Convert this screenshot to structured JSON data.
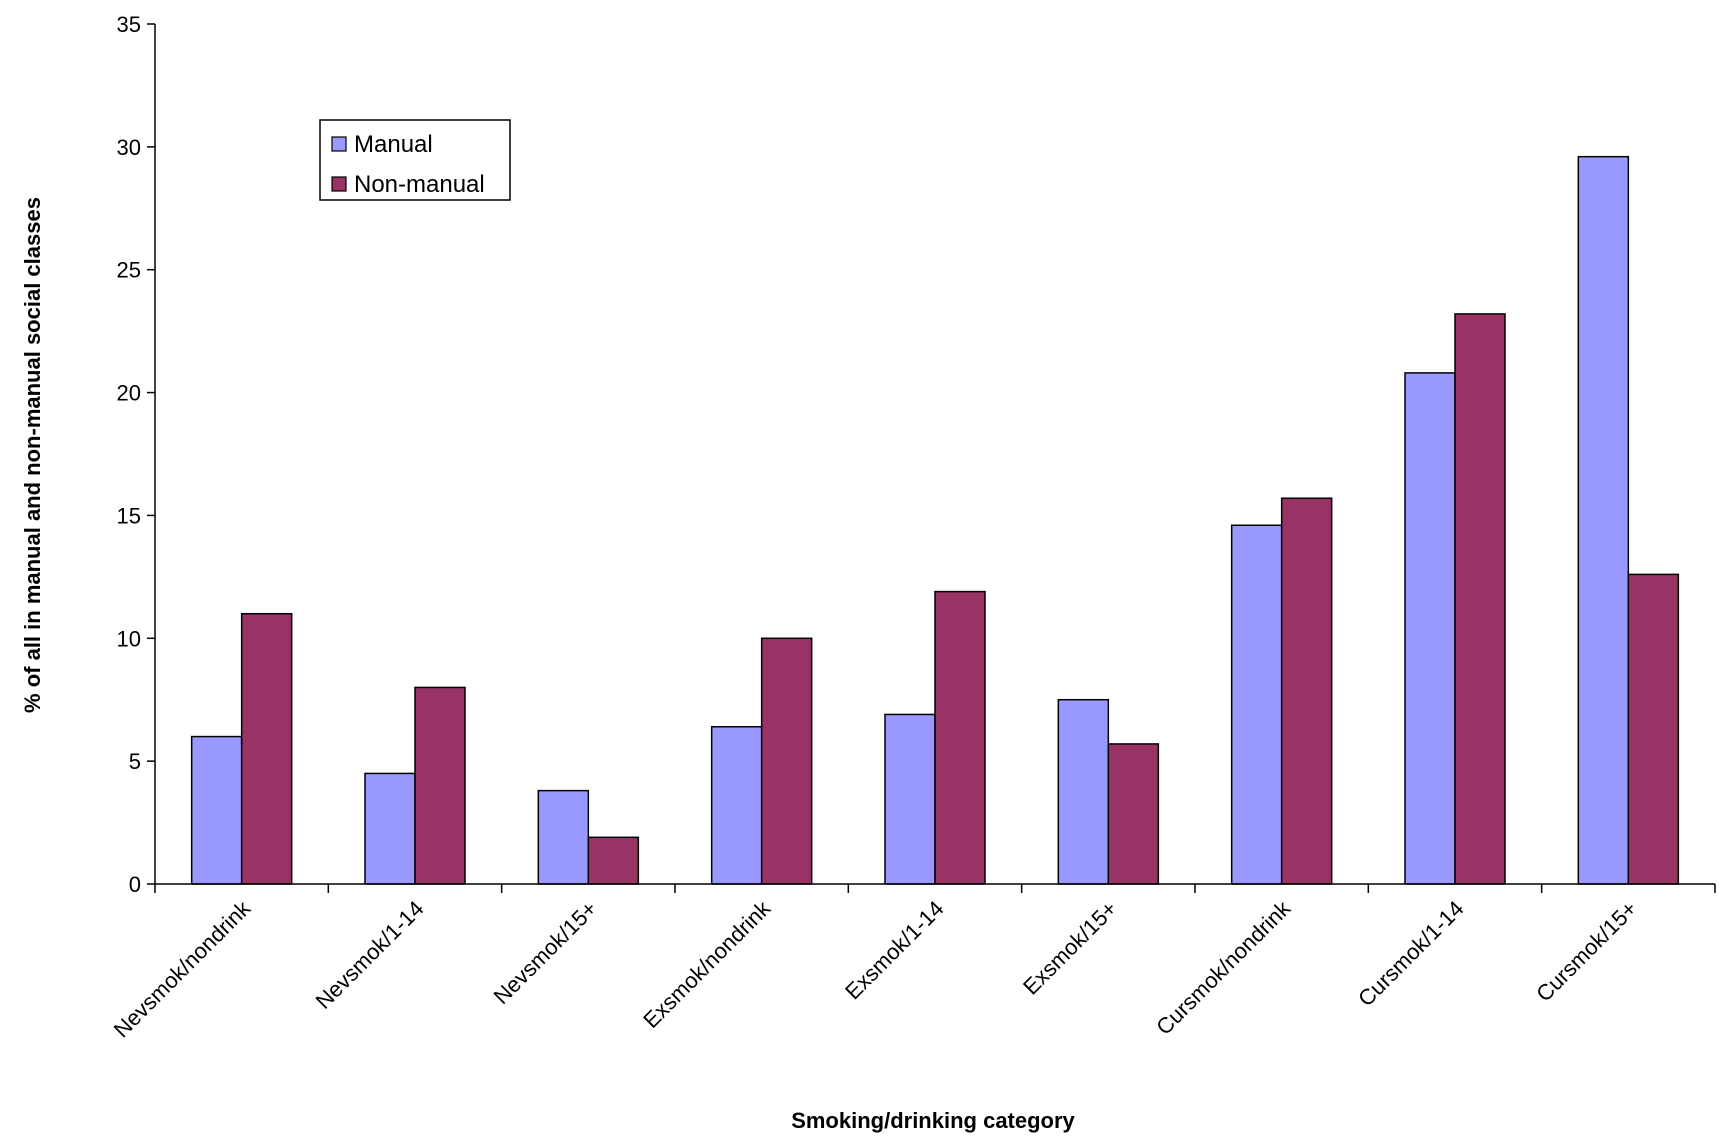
{
  "chart_data": {
    "type": "bar",
    "xlabel": "Smoking/drinking category",
    "ylabel": "%  of all in manual and non-manual social classes",
    "ylim": [
      0,
      35
    ],
    "yticks": [
      0,
      5,
      10,
      15,
      20,
      25,
      30,
      35
    ],
    "grid": false,
    "legend_position": "top-left",
    "categories": [
      "Nevsmok/nondrink",
      "Nevsmok/1-14",
      "Nevsmok/15+",
      "Exsmok/nondrink",
      "Exsmok/1-14",
      "Exsmok/15+",
      "Cursmok/nondrink",
      "Cursmok/1-14",
      "Cursmok/15+"
    ],
    "series": [
      {
        "name": "Manual",
        "color": "#9999ff",
        "values": [
          6.0,
          4.5,
          3.8,
          6.4,
          6.9,
          7.5,
          14.6,
          20.8,
          29.6
        ]
      },
      {
        "name": "Non-manual",
        "color": "#993366",
        "values": [
          11.0,
          8.0,
          1.9,
          10.0,
          11.9,
          5.7,
          15.7,
          23.2,
          12.6
        ]
      }
    ]
  }
}
